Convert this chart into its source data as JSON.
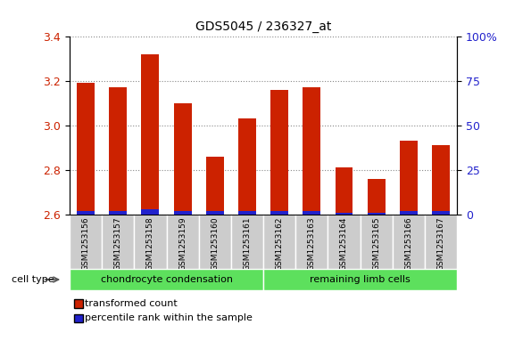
{
  "title": "GDS5045 / 236327_at",
  "samples": [
    "GSM1253156",
    "GSM1253157",
    "GSM1253158",
    "GSM1253159",
    "GSM1253160",
    "GSM1253161",
    "GSM1253162",
    "GSM1253163",
    "GSM1253164",
    "GSM1253165",
    "GSM1253166",
    "GSM1253167"
  ],
  "transformed_count": [
    3.19,
    3.17,
    3.32,
    3.1,
    2.86,
    3.03,
    3.16,
    3.17,
    2.81,
    2.76,
    2.93,
    2.91
  ],
  "percentile_rank": [
    2.0,
    2.0,
    3.0,
    2.0,
    2.0,
    2.0,
    2.0,
    2.0,
    1.0,
    1.0,
    2.0,
    2.0
  ],
  "ylim_left": [
    2.6,
    3.4
  ],
  "ylim_right": [
    0,
    100
  ],
  "yticks_left": [
    2.6,
    2.8,
    3.0,
    3.2,
    3.4
  ],
  "yticks_right": [
    0,
    25,
    50,
    75,
    100
  ],
  "bar_color_red": "#cc2200",
  "bar_color_blue": "#2222cc",
  "bar_width": 0.55,
  "group_labels": [
    "chondrocyte condensation",
    "remaining limb cells"
  ],
  "group_starts": [
    0,
    6
  ],
  "group_ends": [
    5,
    11
  ],
  "group_color": "#5de05d",
  "cell_type_label": "cell type",
  "legend_red": "transformed count",
  "legend_blue": "percentile rank within the sample",
  "tick_area_color": "#cccccc",
  "dotted_grid_color": "#888888",
  "legend_square_size": 7
}
